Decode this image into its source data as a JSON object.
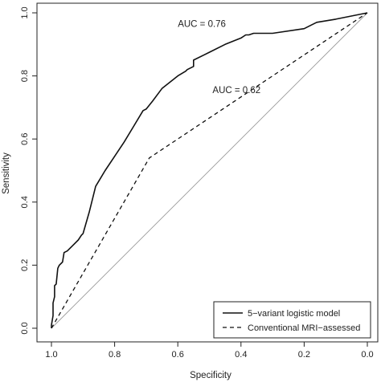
{
  "chart_data": {
    "type": "line",
    "xlabel": "Specificity",
    "ylabel": "Sensitivity",
    "xlim": [
      1.0,
      0.0
    ],
    "ylim": [
      0.0,
      1.0
    ],
    "x_reversed": true,
    "xticks": [
      1.0,
      0.8,
      0.6,
      0.4,
      0.2,
      0.0
    ],
    "xtick_labels": [
      "1.0",
      "0.8",
      "0.6",
      "0.4",
      "0.2",
      "0.0"
    ],
    "yticks": [
      0.0,
      0.2,
      0.4,
      0.6,
      0.8,
      1.0
    ],
    "ytick_labels": [
      "0.0",
      "0.2",
      "0.4",
      "0.6",
      "0.8",
      "1.0"
    ],
    "grid": false,
    "legend_position": "bottom-right",
    "annotations": [
      {
        "text": "AUC = 0.76",
        "x": 0.6,
        "y": 0.955
      },
      {
        "text": "AUC = 0.62",
        "x": 0.49,
        "y": 0.745
      }
    ],
    "series": [
      {
        "name": "5−variant logistic model",
        "style": "solid",
        "color": "#111111",
        "specificity": [
          1.0,
          1.0,
          0.995,
          0.995,
          0.99,
          0.99,
          0.985,
          0.98,
          0.975,
          0.965,
          0.96,
          0.95,
          0.93,
          0.915,
          0.905,
          0.9,
          0.88,
          0.86,
          0.83,
          0.8,
          0.77,
          0.74,
          0.71,
          0.7,
          0.68,
          0.65,
          0.6,
          0.575,
          0.57,
          0.55,
          0.55,
          0.5,
          0.45,
          0.4,
          0.385,
          0.375,
          0.36,
          0.3,
          0.2,
          0.18,
          0.16,
          0.1,
          0.0
        ],
        "sensitivity": [
          0.0,
          0.01,
          0.04,
          0.08,
          0.1,
          0.135,
          0.14,
          0.19,
          0.2,
          0.21,
          0.24,
          0.245,
          0.265,
          0.28,
          0.295,
          0.3,
          0.37,
          0.45,
          0.5,
          0.545,
          0.59,
          0.64,
          0.69,
          0.695,
          0.72,
          0.76,
          0.8,
          0.815,
          0.82,
          0.83,
          0.85,
          0.875,
          0.9,
          0.92,
          0.93,
          0.93,
          0.935,
          0.935,
          0.95,
          0.96,
          0.97,
          0.98,
          1.0
        ]
      },
      {
        "name": "Conventional MRI−assessed",
        "style": "dashed",
        "color": "#111111",
        "specificity": [
          1.0,
          0.69,
          0.0
        ],
        "sensitivity": [
          0.0,
          0.54,
          1.0
        ]
      }
    ],
    "reference_line": {
      "style": "solid",
      "color": "#999999",
      "from": [
        1.0,
        0.0
      ],
      "to": [
        0.0,
        1.0
      ]
    }
  }
}
